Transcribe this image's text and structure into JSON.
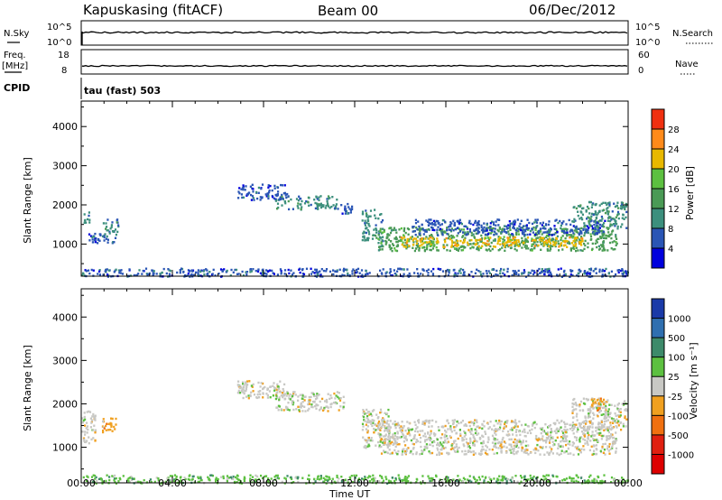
{
  "header": {
    "station": "Kapuskasing (fitACF)",
    "beam": "Beam 00",
    "date": "06/Dec/2012"
  },
  "top_panels": {
    "nsky_label": "N.Sky",
    "nsky_ticks": [
      "10^5",
      "10^0"
    ],
    "nsearch_label": "N.Search",
    "nsearch_ticks": [
      "10^5",
      "10^0"
    ],
    "freq_label_line1": "Freq.",
    "freq_label_line2": "[MHz]",
    "freq_ticks": [
      "18",
      "8"
    ],
    "nave_label": "Nave",
    "nave_ticks": [
      "60",
      "0"
    ],
    "cpid_label": "CPID",
    "cpid_text": "tau (fast) 503"
  },
  "chart_data": [
    {
      "type": "heatmap",
      "name": "power",
      "ylabel": "Slant Range [km]",
      "ylim": [
        180,
        4650
      ],
      "yticks": [
        1000,
        2000,
        3000,
        4000
      ],
      "xlim_hours": [
        0,
        24
      ],
      "colorbar": {
        "label": "Power [dB]",
        "levels": [
          "28",
          "24",
          "20",
          "16",
          "12",
          "8",
          "4"
        ],
        "colors": [
          "#0000dd",
          "#2a55b5",
          "#3c8f7d",
          "#4a9a55",
          "#5cc040",
          "#e8b800",
          "#ff8a1a",
          "#f03010"
        ]
      },
      "regions": [
        {
          "t0": 0.0,
          "t1": 0.35,
          "r0": 1550,
          "r1": 1850,
          "level": 2
        },
        {
          "t0": 0.3,
          "t1": 1.5,
          "r0": 1050,
          "r1": 1350,
          "level": 1
        },
        {
          "t0": 0.9,
          "t1": 1.6,
          "r0": 1250,
          "r1": 1650,
          "level": 2
        },
        {
          "t0": 6.8,
          "t1": 9.0,
          "r0": 2150,
          "r1": 2550,
          "level": 1
        },
        {
          "t0": 8.5,
          "t1": 11.2,
          "r0": 1900,
          "r1": 2250,
          "level": 2
        },
        {
          "t0": 11.2,
          "t1": 12.0,
          "r0": 1800,
          "r1": 2050,
          "level": 1
        },
        {
          "t0": 12.3,
          "t1": 13.2,
          "r0": 1100,
          "r1": 1900,
          "level": 2
        },
        {
          "t0": 13.0,
          "t1": 23.5,
          "r0": 850,
          "r1": 1450,
          "level": 3
        },
        {
          "t0": 14.0,
          "t1": 22.0,
          "r0": 950,
          "r1": 1200,
          "level": 5
        },
        {
          "t0": 14.5,
          "t1": 23.0,
          "r0": 1250,
          "r1": 1650,
          "level": 1
        },
        {
          "t0": 21.5,
          "t1": 23.9,
          "r0": 1400,
          "r1": 2100,
          "level": 2
        },
        {
          "t0": 0.0,
          "t1": 24.0,
          "r0": 190,
          "r1": 400,
          "level": 1
        }
      ]
    },
    {
      "type": "heatmap",
      "name": "velocity",
      "ylabel": "Slant Range [km]",
      "xlabel": "Time UT",
      "ylim": [
        180,
        4650
      ],
      "yticks": [
        1000,
        2000,
        3000,
        4000
      ],
      "xlim_hours": [
        0,
        24
      ],
      "xtick_labels": [
        "00:00",
        "04:00",
        "08:00",
        "12:00",
        "16:00",
        "20:00",
        "00:00"
      ],
      "colorbar": {
        "label": "Velocity [m s⁻¹]",
        "levels": [
          "1000",
          "500",
          "100",
          "25",
          "-25",
          "-100",
          "-500",
          "-1000"
        ],
        "colors": [
          "#1a3aa8",
          "#2f6fb0",
          "#3d8a6a",
          "#5cc040",
          "#c8c8c4",
          "#f0a020",
          "#f07010",
          "#e02010",
          "#dd0000"
        ]
      },
      "regions": [
        {
          "t0": 0.0,
          "t1": 0.6,
          "r0": 1100,
          "r1": 1850,
          "level": 4
        },
        {
          "t0": 0.9,
          "t1": 1.5,
          "r0": 1350,
          "r1": 1700,
          "level": 5
        },
        {
          "t0": 6.8,
          "t1": 9.0,
          "r0": 2150,
          "r1": 2550,
          "level": 4
        },
        {
          "t0": 8.5,
          "t1": 11.5,
          "r0": 1850,
          "r1": 2300,
          "level": 4
        },
        {
          "t0": 12.3,
          "t1": 13.5,
          "r0": 1000,
          "r1": 1900,
          "level": 4
        },
        {
          "t0": 13.0,
          "t1": 23.5,
          "r0": 850,
          "r1": 1650,
          "level": 4
        },
        {
          "t0": 21.5,
          "t1": 23.9,
          "r0": 1400,
          "r1": 2150,
          "level": 4
        },
        {
          "t0": 22.3,
          "t1": 22.9,
          "r0": 1850,
          "r1": 2150,
          "level": 5
        },
        {
          "t0": 0.0,
          "t1": 24.0,
          "r0": 190,
          "r1": 380,
          "level": 3
        }
      ]
    }
  ]
}
